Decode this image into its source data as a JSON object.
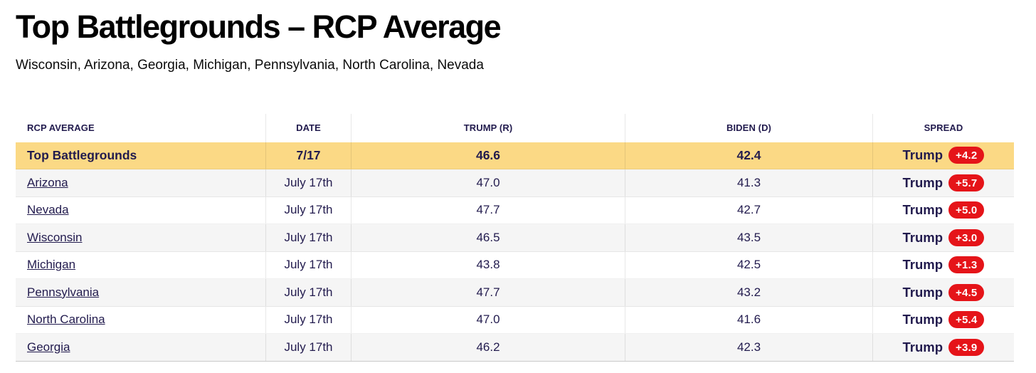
{
  "page": {
    "title": "Top Battlegrounds – RCP Average",
    "subtitle": "Wisconsin, Arizona, Georgia, Michigan, Pennsylvania, North Carolina, Nevada"
  },
  "colors": {
    "highlight_row": "#fbd985",
    "spread_badge_red": "#e51419",
    "table_text_navy": "#221b4e"
  },
  "table": {
    "columns": [
      "RCP Average",
      "Date",
      "Trump (R)",
      "Biden (D)",
      "Spread"
    ],
    "rows": [
      {
        "name": "Top Battlegrounds",
        "date": "7/17",
        "trump": "46.6",
        "biden": "42.4",
        "spread_party": "Trump",
        "spread_value": "+4.2"
      },
      {
        "name": "Arizona",
        "date": "July 17th",
        "trump": "47.0",
        "biden": "41.3",
        "spread_party": "Trump",
        "spread_value": "+5.7"
      },
      {
        "name": "Nevada",
        "date": "July 17th",
        "trump": "47.7",
        "biden": "42.7",
        "spread_party": "Trump",
        "spread_value": "+5.0"
      },
      {
        "name": "Wisconsin",
        "date": "July 17th",
        "trump": "46.5",
        "biden": "43.5",
        "spread_party": "Trump",
        "spread_value": "+3.0"
      },
      {
        "name": "Michigan",
        "date": "July 17th",
        "trump": "43.8",
        "biden": "42.5",
        "spread_party": "Trump",
        "spread_value": "+1.3"
      },
      {
        "name": "Pennsylvania",
        "date": "July 17th",
        "trump": "47.7",
        "biden": "43.2",
        "spread_party": "Trump",
        "spread_value": "+4.5"
      },
      {
        "name": "North Carolina",
        "date": "July 17th",
        "trump": "47.0",
        "biden": "41.6",
        "spread_party": "Trump",
        "spread_value": "+5.4"
      },
      {
        "name": "Georgia",
        "date": "July 17th",
        "trump": "46.2",
        "biden": "42.3",
        "spread_party": "Trump",
        "spread_value": "+3.9"
      }
    ]
  }
}
